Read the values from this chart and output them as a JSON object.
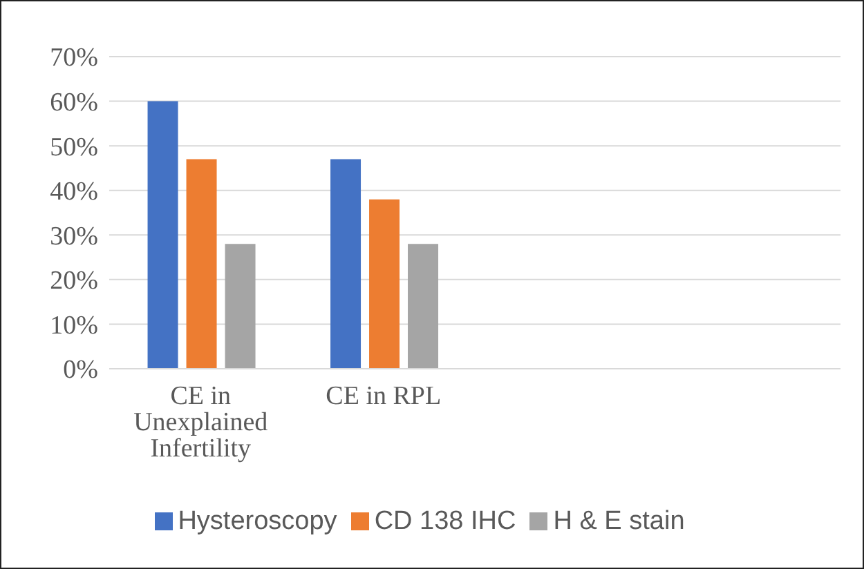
{
  "chart_data": {
    "type": "bar",
    "categories": [
      "CE in Unexplained Infertility",
      "CE in RPL",
      null,
      null
    ],
    "series": [
      {
        "name": "Hysteroscopy",
        "color": "#4472c4",
        "values": [
          60,
          47,
          null,
          null
        ]
      },
      {
        "name": "CD 138 IHC",
        "color": "#ed7d31",
        "values": [
          47,
          38,
          null,
          null
        ]
      },
      {
        "name": "H & E stain",
        "color": "#a5a5a5",
        "values": [
          28,
          28,
          null,
          null
        ]
      }
    ],
    "ylim": [
      0,
      70
    ],
    "yticks": [
      {
        "value": 0,
        "label": "0%"
      },
      {
        "value": 10,
        "label": "10%"
      },
      {
        "value": 20,
        "label": "20%"
      },
      {
        "value": 30,
        "label": "30%"
      },
      {
        "value": 40,
        "label": "40%"
      },
      {
        "value": 50,
        "label": "50%"
      },
      {
        "value": 60,
        "label": "60%"
      },
      {
        "value": 70,
        "label": "70%"
      }
    ],
    "grid": "y",
    "legend": "bottom"
  }
}
